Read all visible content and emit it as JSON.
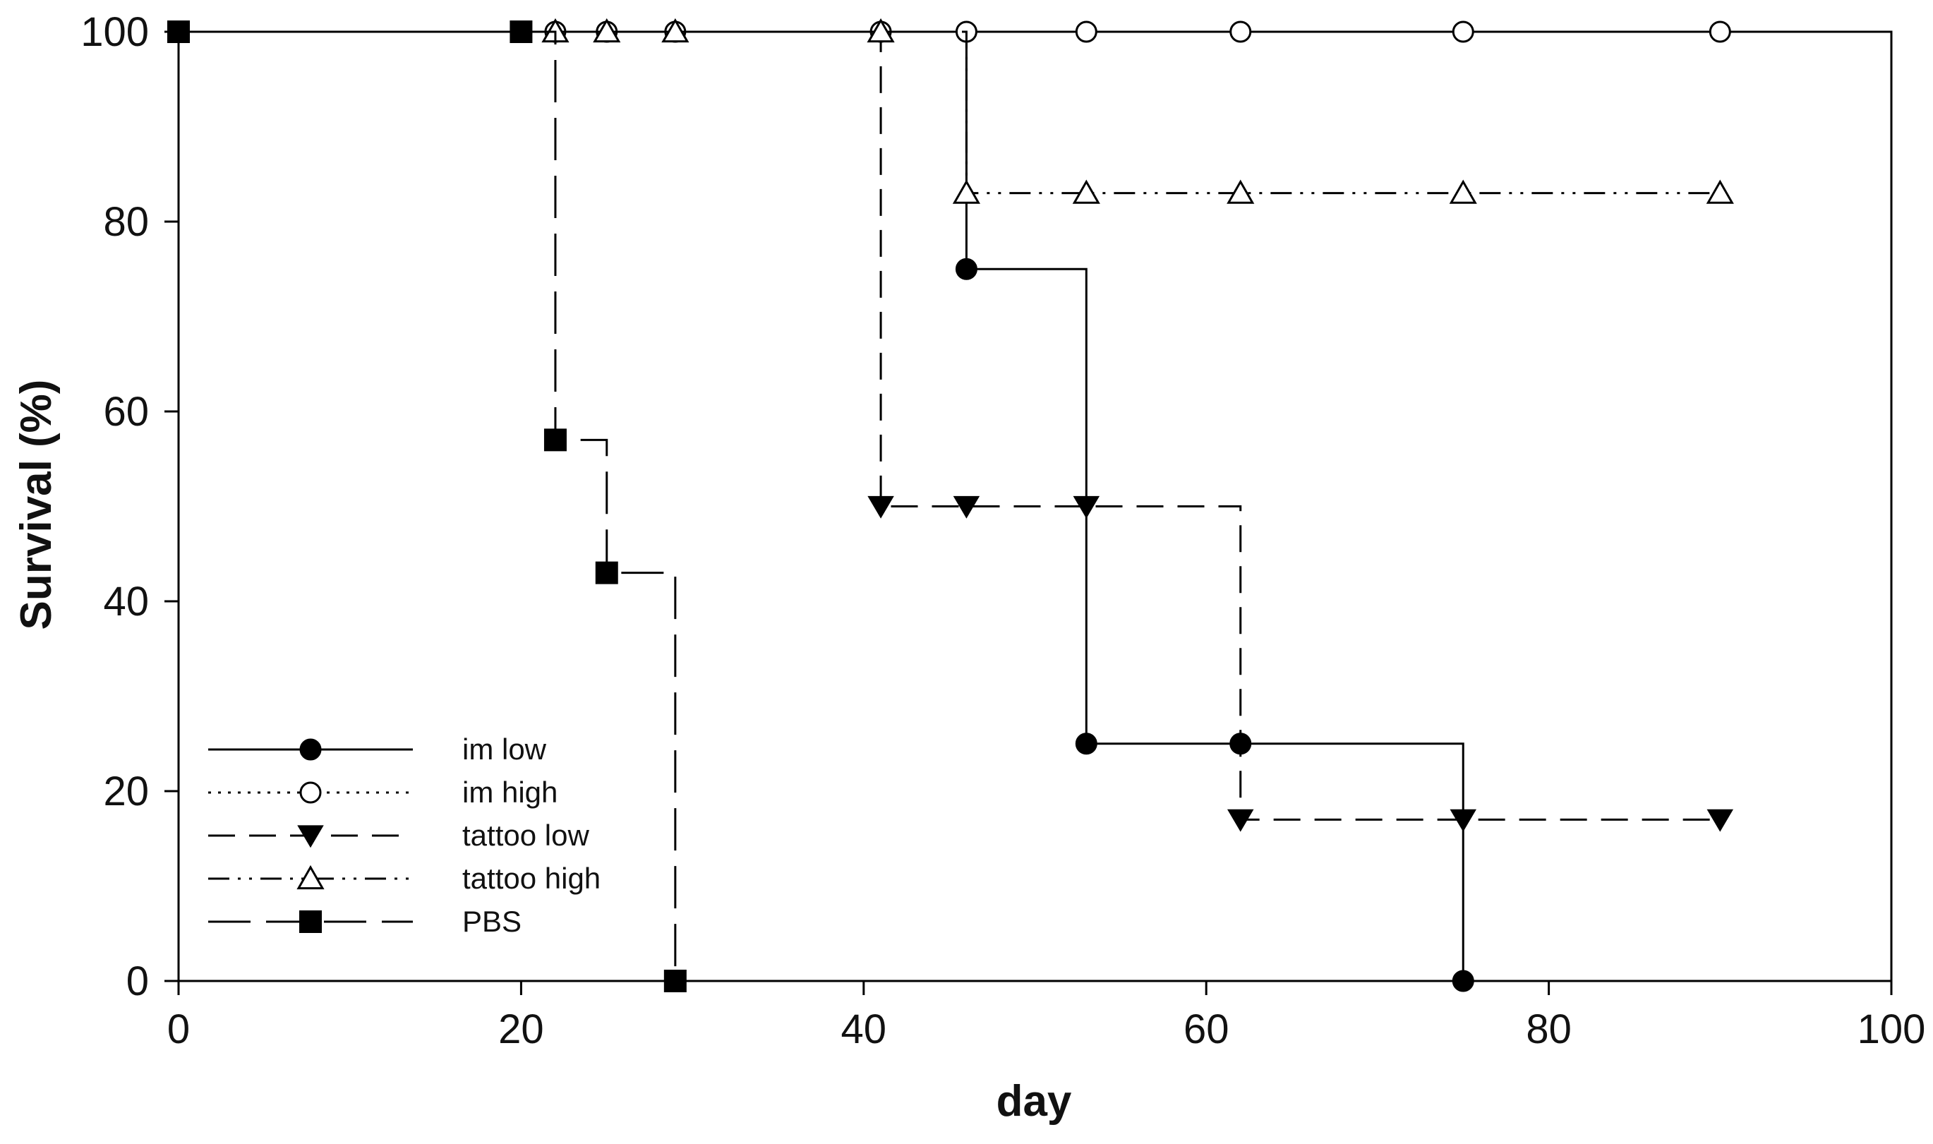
{
  "chart_data": {
    "type": "line",
    "xlabel": "day",
    "ylabel": "Survival (%)",
    "xlim": [
      0,
      100
    ],
    "ylim": [
      0,
      100
    ],
    "xticks": [
      0,
      20,
      40,
      60,
      80,
      100
    ],
    "yticks": [
      0,
      20,
      40,
      60,
      80,
      100
    ],
    "grid": false,
    "legend_position": "bottom-left",
    "series": [
      {
        "name": "im low",
        "line_style": "solid",
        "marker": "filled-circle",
        "steps": [
          [
            0,
            100
          ],
          [
            46,
            100
          ],
          [
            46,
            75
          ],
          [
            53,
            75
          ],
          [
            53,
            25
          ],
          [
            75,
            25
          ],
          [
            75,
            0
          ]
        ],
        "markers": [
          [
            0,
            100
          ],
          [
            20,
            100
          ],
          [
            46,
            75
          ],
          [
            53,
            25
          ],
          [
            62,
            25
          ],
          [
            75,
            0
          ]
        ]
      },
      {
        "name": "im high",
        "line_style": "dotted",
        "marker": "open-circle",
        "steps": [
          [
            0,
            100
          ],
          [
            90,
            100
          ]
        ],
        "markers": [
          [
            0,
            100
          ],
          [
            22,
            100
          ],
          [
            25,
            100
          ],
          [
            29,
            100
          ],
          [
            41,
            100
          ],
          [
            46,
            100
          ],
          [
            53,
            100
          ],
          [
            62,
            100
          ],
          [
            75,
            100
          ],
          [
            90,
            100
          ]
        ]
      },
      {
        "name": "tattoo low",
        "line_style": "dashed",
        "marker": "filled-triangle-down",
        "steps": [
          [
            0,
            100
          ],
          [
            41,
            100
          ],
          [
            41,
            50
          ],
          [
            62,
            50
          ],
          [
            62,
            17
          ],
          [
            90,
            17
          ]
        ],
        "markers": [
          [
            41,
            50
          ],
          [
            46,
            50
          ],
          [
            53,
            50
          ],
          [
            62,
            17
          ],
          [
            75,
            17
          ],
          [
            90,
            17
          ]
        ]
      },
      {
        "name": "tattoo high",
        "line_style": "dash-dot-dot",
        "marker": "open-triangle-up",
        "steps": [
          [
            0,
            100
          ],
          [
            46,
            100
          ],
          [
            46,
            83
          ],
          [
            90,
            83
          ]
        ],
        "markers": [
          [
            22,
            100
          ],
          [
            25,
            100
          ],
          [
            29,
            100
          ],
          [
            41,
            100
          ],
          [
            46,
            83
          ],
          [
            53,
            83
          ],
          [
            62,
            83
          ],
          [
            75,
            83
          ],
          [
            90,
            83
          ]
        ]
      },
      {
        "name": "PBS",
        "line_style": "long-dash",
        "marker": "filled-square",
        "steps": [
          [
            0,
            100
          ],
          [
            22,
            100
          ],
          [
            22,
            57
          ],
          [
            25,
            57
          ],
          [
            25,
            43
          ],
          [
            29,
            43
          ],
          [
            29,
            0
          ]
        ],
        "markers": [
          [
            0,
            100
          ],
          [
            20,
            100
          ],
          [
            22,
            57
          ],
          [
            25,
            43
          ],
          [
            29,
            0
          ]
        ]
      }
    ]
  }
}
